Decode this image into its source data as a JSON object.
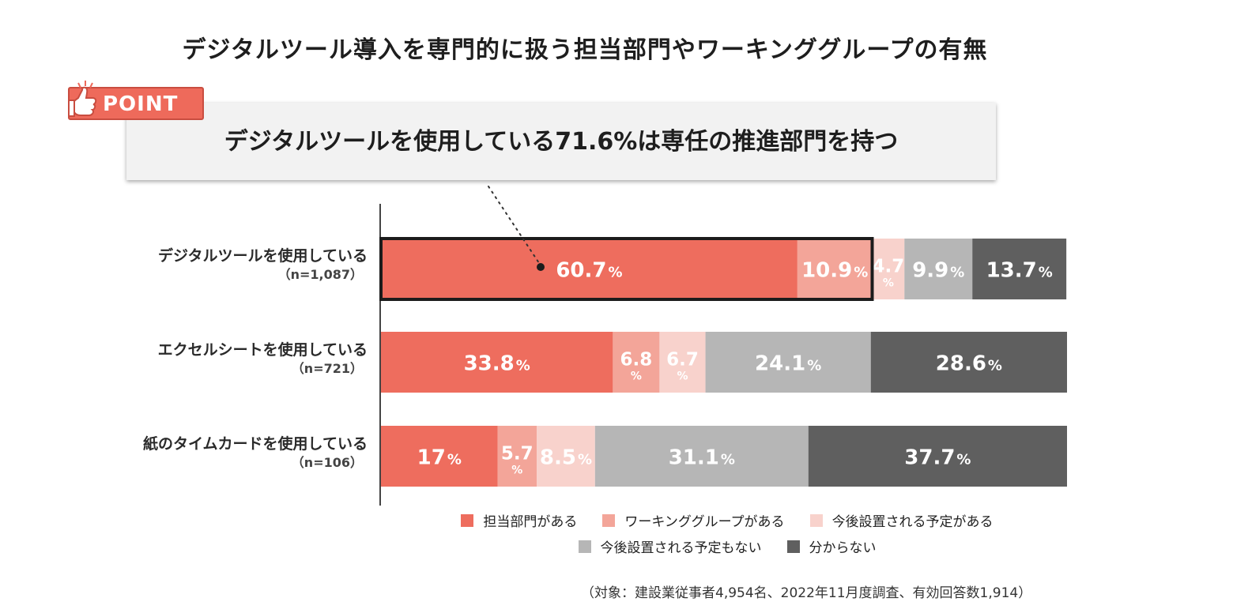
{
  "title": "デジタルツール導入を専門的に扱う担当部門やワーキンググループの有無",
  "point": {
    "badge": "POINT",
    "text": "デジタルツールを使用している71.6%は専任の推進部門を持つ"
  },
  "chart_data": {
    "type": "bar",
    "orientation": "horizontal-stacked-100",
    "title": "デジタルツール導入を専門的に扱う担当部門やワーキンググループの有無",
    "categories": [
      {
        "label": "デジタルツールを使用している",
        "n": "（n=1,087）"
      },
      {
        "label": "エクセルシートを使用している",
        "n": "（n=721）"
      },
      {
        "label": "紙のタイムカードを使用している",
        "n": "（n=106）"
      }
    ],
    "series": [
      {
        "name": "担当部門がある",
        "color": "#ee6d5e",
        "values": [
          60.7,
          33.8,
          17
        ],
        "display": [
          "60.7",
          "33.8",
          "17"
        ]
      },
      {
        "name": "ワーキンググループがある",
        "color": "#f3a599",
        "values": [
          10.9,
          6.8,
          5.7
        ],
        "display": [
          "10.9",
          "6.8",
          "5.7"
        ]
      },
      {
        "name": "今後設置される予定がある",
        "color": "#f8d2cc",
        "values": [
          4.7,
          6.7,
          8.5
        ],
        "display": [
          "4.7",
          "6.7",
          "8.5"
        ]
      },
      {
        "name": "今後設置される予定もない",
        "color": "#b6b6b6",
        "values": [
          9.9,
          24.1,
          31.1
        ],
        "display": [
          "9.9",
          "24.1",
          "31.1"
        ]
      },
      {
        "name": "分からない",
        "color": "#5f5f5f",
        "values": [
          13.7,
          28.6,
          37.7
        ],
        "display": [
          "13.7",
          "28.6",
          "37.7"
        ]
      }
    ],
    "unit": "%",
    "highlight": {
      "category_index": 0,
      "series_indices": [
        0,
        1
      ]
    },
    "legend_position": "bottom"
  },
  "footnote": "（対象：建設業従事者4,954名、2022年11月度調査、有効回答数1,914）"
}
